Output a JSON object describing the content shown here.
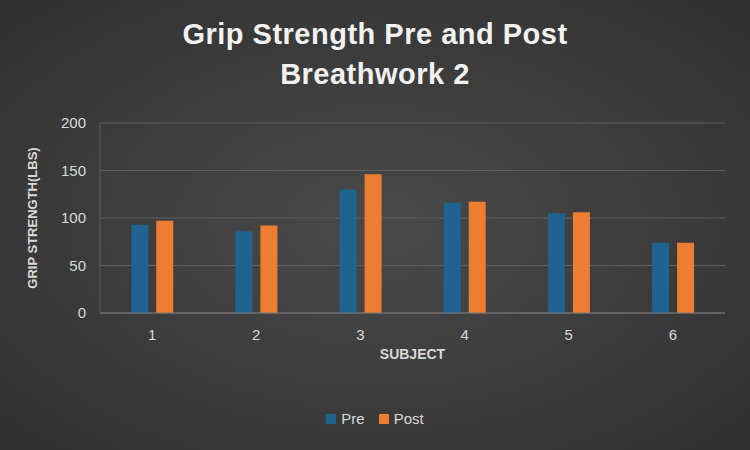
{
  "chart_data": {
    "type": "bar",
    "title": "Grip Strength Pre and Post Breathwork 2",
    "x_label": "SUBJECT",
    "y_label": "GRIP STRENGTH(LBS)",
    "categories": [
      "1",
      "2",
      "3",
      "4",
      "5",
      "6"
    ],
    "series": [
      {
        "name": "Pre",
        "color": "#1f6391",
        "values": [
          93,
          86,
          130,
          116,
          105,
          74
        ]
      },
      {
        "name": "Post",
        "color": "#ed7d31",
        "values": [
          97,
          92,
          146,
          117,
          106,
          74
        ]
      }
    ],
    "ylim": [
      0,
      200
    ],
    "yticks": [
      0,
      50,
      100,
      150,
      200
    ],
    "grid": true,
    "legend": "bottom"
  }
}
